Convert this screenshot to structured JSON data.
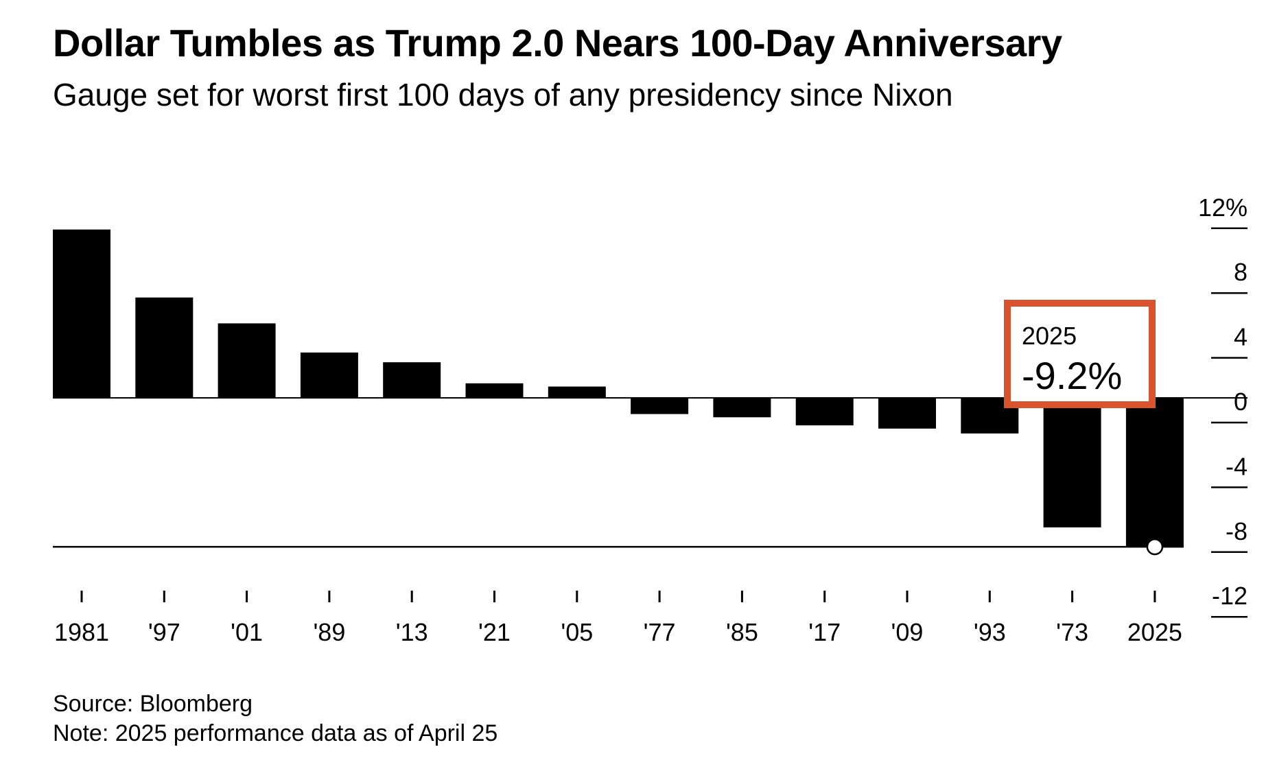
{
  "header": {
    "title": "Dollar Tumbles as Trump 2.0 Nears 100-Day Anniversary",
    "subtitle": "Gauge set for worst first 100 days of any presidency since Nixon"
  },
  "footer": {
    "source": "Source: Bloomberg",
    "note": "Note: 2025 performance data as of April 25"
  },
  "colors": {
    "bar": "#000000",
    "highlight": "#d9532f",
    "text": "#000000",
    "background": "#ffffff"
  },
  "chart_data": {
    "type": "bar",
    "title": "Dollar Tumbles as Trump 2.0 Nears 100-Day Anniversary",
    "subtitle": "Gauge set for worst first 100 days of any presidency since Nixon",
    "categories": [
      "1981",
      "'97",
      "'01",
      "'89",
      "'13",
      "'21",
      "'05",
      "'77",
      "'85",
      "'17",
      "'09",
      "'93",
      "'73",
      "2025"
    ],
    "values": [
      10.4,
      6.2,
      4.6,
      2.8,
      2.2,
      0.9,
      0.7,
      -1.0,
      -1.2,
      -1.7,
      -1.9,
      -2.2,
      -8.0,
      -9.2
    ],
    "ylim": [
      -12,
      12
    ],
    "yticks": [
      12,
      8,
      4,
      0,
      -4,
      -8,
      -12
    ],
    "ytick_labels": [
      "12%",
      "8",
      "4",
      "0",
      "-4",
      "-8",
      "-12"
    ],
    "yaxis_position": "right",
    "grid": false,
    "reference_line": -9.2,
    "annotation": {
      "category": "2025",
      "label": "2025",
      "value_label": "-9.2%"
    }
  }
}
